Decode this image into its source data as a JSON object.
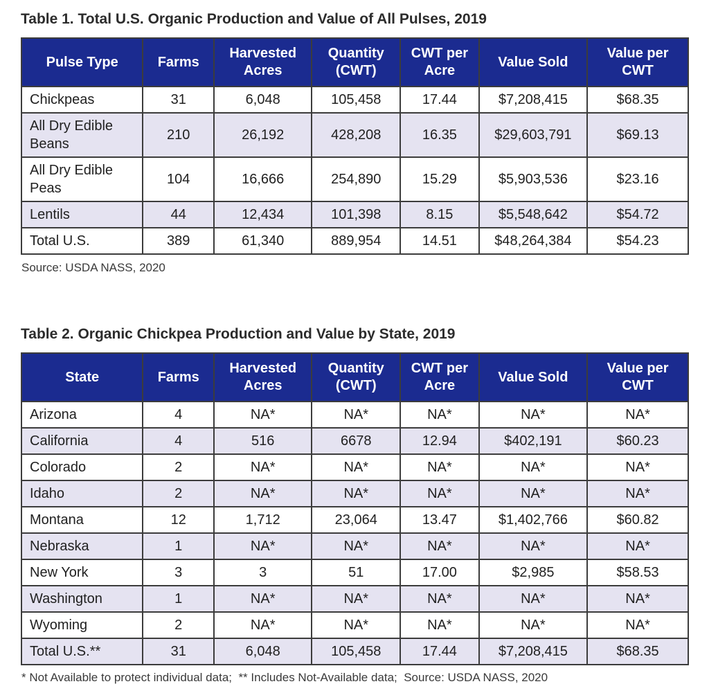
{
  "colors": {
    "header_bg": "#1b2b90",
    "stripe_bg": "#e5e3f1",
    "border": "#3c3c3c",
    "text": "#212121"
  },
  "table1": {
    "title": "Table 1. Total U.S. Organic Production and Value of All Pulses, 2019",
    "columns": [
      "Pulse Type",
      "Farms",
      "Harvested Acres",
      "Quantity (CWT)",
      "CWT per Acre",
      "Value Sold",
      "Value per CWT"
    ],
    "rows": [
      [
        "Chickpeas",
        "31",
        "6,048",
        "105,458",
        "17.44",
        "$7,208,415",
        "$68.35"
      ],
      [
        "All Dry Edible Beans",
        "210",
        "26,192",
        "428,208",
        "16.35",
        "$29,603,791",
        "$69.13"
      ],
      [
        "All Dry Edible Peas",
        "104",
        "16,666",
        "254,890",
        "15.29",
        "$5,903,536",
        "$23.16"
      ],
      [
        "Lentils",
        "44",
        "12,434",
        "101,398",
        "8.15",
        "$5,548,642",
        "$54.72"
      ],
      [
        "Total U.S.",
        "389",
        "61,340",
        "889,954",
        "14.51",
        "$48,264,384",
        "$54.23"
      ]
    ],
    "source": "Source: USDA NASS, 2020"
  },
  "table2": {
    "title": "Table 2. Organic Chickpea Production and Value by State, 2019",
    "columns": [
      "State",
      "Farms",
      "Harvested Acres",
      "Quantity (CWT)",
      "CWT per Acre",
      "Value Sold",
      "Value per CWT"
    ],
    "rows": [
      [
        "Arizona",
        "4",
        "NA*",
        "NA*",
        "NA*",
        "NA*",
        "NA*"
      ],
      [
        "California",
        "4",
        "516",
        "6678",
        "12.94",
        "$402,191",
        "$60.23"
      ],
      [
        "Colorado",
        "2",
        "NA*",
        "NA*",
        "NA*",
        "NA*",
        "NA*"
      ],
      [
        "Idaho",
        "2",
        "NA*",
        "NA*",
        "NA*",
        "NA*",
        "NA*"
      ],
      [
        "Montana",
        "12",
        "1,712",
        "23,064",
        "13.47",
        "$1,402,766",
        "$60.82"
      ],
      [
        "Nebraska",
        "1",
        "NA*",
        "NA*",
        "NA*",
        "NA*",
        "NA*"
      ],
      [
        "New York",
        "3",
        "3",
        "51",
        "17.00",
        "$2,985",
        "$58.53"
      ],
      [
        "Washington",
        "1",
        "NA*",
        "NA*",
        "NA*",
        "NA*",
        "NA*"
      ],
      [
        "Wyoming",
        "2",
        "NA*",
        "NA*",
        "NA*",
        "NA*",
        "NA*"
      ],
      [
        "Total U.S.**",
        "31",
        "6,048",
        "105,458",
        "17.44",
        "$7,208,415",
        "$68.35"
      ]
    ],
    "footnote": "* Not Available to protect individual data;  ** Includes Not-Available data;  Source: USDA NASS, 2020"
  }
}
